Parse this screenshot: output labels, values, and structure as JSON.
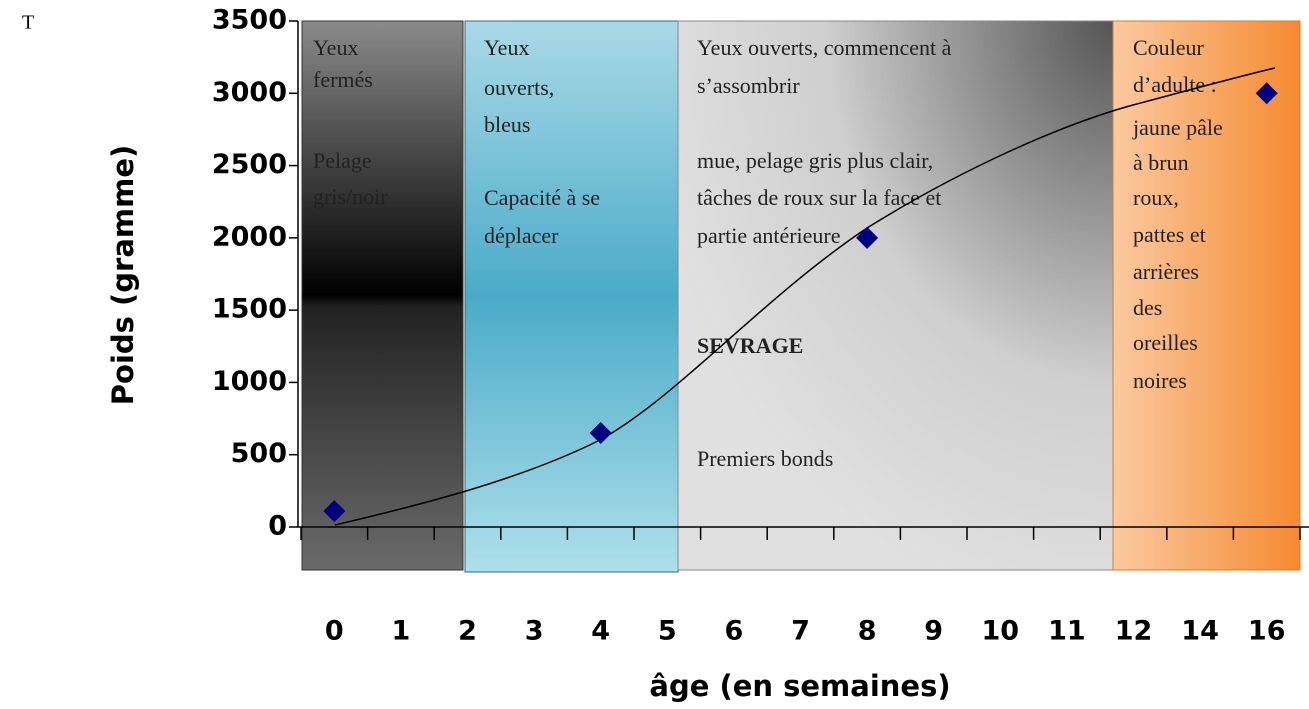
{
  "page_marker": "T",
  "chart_data": {
    "type": "scatter",
    "y_label": "Poids (gramme)",
    "x_label": "âge (en semaines)",
    "categories": [
      "0",
      "1",
      "2",
      "3",
      "4",
      "5",
      "6",
      "7",
      "8",
      "9",
      "10",
      "11",
      "12",
      "14",
      "16"
    ],
    "series": [
      {
        "color": "#000080",
        "values": [
          110,
          null,
          null,
          null,
          650,
          null,
          null,
          null,
          2000,
          null,
          null,
          null,
          null,
          null,
          3000
        ]
      }
    ],
    "ylim": [
      0,
      3500
    ],
    "yticks": [
      0,
      500,
      1000,
      1500,
      2000,
      2500,
      3000,
      3500
    ],
    "phases": [
      {
        "lines": [
          "Yeux",
          "fermés",
          "Pelage",
          "gris/noir"
        ]
      },
      {
        "lines": [
          "Yeux",
          "ouverts,",
          "bleus",
          "Capacité à se",
          "déplacer"
        ]
      },
      {
        "lines": [
          "Yeux ouverts, commencent à",
          "s’assombrir",
          "mue, pelage gris plus clair,",
          "tâches de roux sur la face et",
          "partie antérieure",
          "SEVRAGE",
          "Premiers bonds"
        ]
      },
      {
        "lines": [
          "Couleur",
          "d’adulte :",
          "jaune pâle",
          "à brun",
          "roux,",
          "pattes et",
          "arrières",
          "des",
          "oreilles",
          "noires"
        ]
      }
    ]
  }
}
